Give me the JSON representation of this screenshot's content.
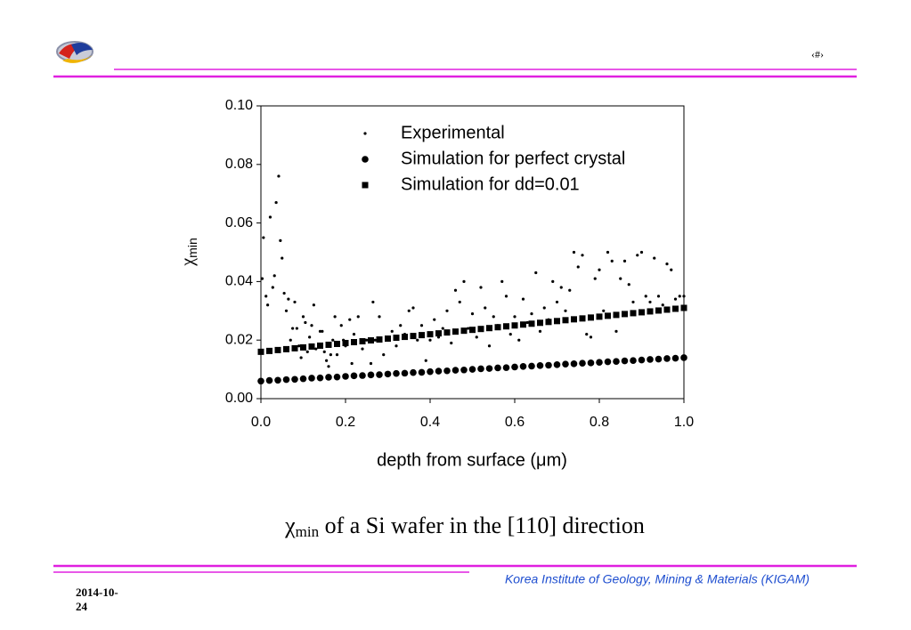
{
  "page_number": "‹#›",
  "footer": "Korea Institute of Geology, Mining & Materials (KIGAM)",
  "date": "2014-10-24",
  "caption": {
    "symbol": "χ",
    "subscript": "min",
    "text": " of a Si wafer in the [110] direction"
  },
  "chart_data": {
    "type": "scatter",
    "ylabel": "χ",
    "ylabel_subscript": "min",
    "xlabel": "depth from surface (μm)",
    "xlim": [
      0,
      1
    ],
    "ylim": [
      0,
      0.1
    ],
    "xticks": [
      {
        "value": 0,
        "label": "0.0"
      },
      {
        "value": 0.2,
        "label": "0.2"
      },
      {
        "value": 0.4,
        "label": "0.4"
      },
      {
        "value": 0.6,
        "label": "0.6"
      },
      {
        "value": 0.8,
        "label": "0.8"
      },
      {
        "value": 1,
        "label": "1.0"
      }
    ],
    "yticks": [
      {
        "value": 0,
        "label": "0.00"
      },
      {
        "value": 0.02,
        "label": "0.02"
      },
      {
        "value": 0.04,
        "label": "0.04"
      },
      {
        "value": 0.06,
        "label": "0.06"
      },
      {
        "value": 0.08,
        "label": "0.08"
      },
      {
        "value": 0.1,
        "label": "0.10"
      }
    ],
    "grid": false,
    "legend": "upper right",
    "series": [
      {
        "name": "Experimental",
        "color": "#000000",
        "marker": "small-dot",
        "x": [
          0.003,
          0.006,
          0.012,
          0.016,
          0.022,
          0.028,
          0.032,
          0.036,
          0.042,
          0.046,
          0.05,
          0.055,
          0.06,
          0.065,
          0.07,
          0.075,
          0.08,
          0.085,
          0.09,
          0.095,
          0.1,
          0.105,
          0.11,
          0.115,
          0.12,
          0.125,
          0.13,
          0.14,
          0.145,
          0.15,
          0.155,
          0.16,
          0.165,
          0.17,
          0.175,
          0.18,
          0.19,
          0.195,
          0.2,
          0.21,
          0.215,
          0.22,
          0.23,
          0.24,
          0.25,
          0.26,
          0.265,
          0.27,
          0.28,
          0.29,
          0.3,
          0.31,
          0.32,
          0.33,
          0.34,
          0.35,
          0.36,
          0.37,
          0.38,
          0.39,
          0.4,
          0.41,
          0.42,
          0.43,
          0.44,
          0.45,
          0.46,
          0.47,
          0.48,
          0.49,
          0.5,
          0.51,
          0.52,
          0.53,
          0.54,
          0.55,
          0.56,
          0.57,
          0.58,
          0.59,
          0.6,
          0.61,
          0.62,
          0.63,
          0.64,
          0.65,
          0.66,
          0.67,
          0.68,
          0.69,
          0.7,
          0.71,
          0.72,
          0.73,
          0.74,
          0.75,
          0.76,
          0.77,
          0.78,
          0.79,
          0.8,
          0.81,
          0.82,
          0.83,
          0.84,
          0.85,
          0.86,
          0.87,
          0.88,
          0.89,
          0.9,
          0.91,
          0.92,
          0.93,
          0.94,
          0.95,
          0.96,
          0.97,
          0.98,
          0.99,
          1.0
        ],
        "values": [
          0.041,
          0.055,
          0.035,
          0.032,
          0.062,
          0.038,
          0.042,
          0.067,
          0.076,
          0.054,
          0.048,
          0.036,
          0.03,
          0.034,
          0.02,
          0.024,
          0.033,
          0.024,
          0.018,
          0.014,
          0.028,
          0.026,
          0.016,
          0.021,
          0.025,
          0.032,
          0.017,
          0.023,
          0.023,
          0.016,
          0.013,
          0.011,
          0.015,
          0.02,
          0.028,
          0.015,
          0.025,
          0.02,
          0.018,
          0.027,
          0.012,
          0.022,
          0.028,
          0.017,
          0.02,
          0.012,
          0.033,
          0.02,
          0.028,
          0.015,
          0.021,
          0.023,
          0.018,
          0.025,
          0.022,
          0.03,
          0.031,
          0.02,
          0.025,
          0.013,
          0.02,
          0.027,
          0.021,
          0.024,
          0.03,
          0.019,
          0.037,
          0.033,
          0.04,
          0.024,
          0.029,
          0.021,
          0.038,
          0.031,
          0.018,
          0.028,
          0.025,
          0.04,
          0.035,
          0.022,
          0.028,
          0.02,
          0.034,
          0.026,
          0.029,
          0.043,
          0.023,
          0.031,
          0.027,
          0.04,
          0.033,
          0.038,
          0.03,
          0.037,
          0.05,
          0.045,
          0.049,
          0.022,
          0.021,
          0.041,
          0.044,
          0.03,
          0.05,
          0.047,
          0.023,
          0.041,
          0.047,
          0.039,
          0.033,
          0.049,
          0.05,
          0.035,
          0.033,
          0.048,
          0.035,
          0.032,
          0.046,
          0.044,
          0.034,
          0.035,
          0.035
        ]
      },
      {
        "name": "Simulation for perfect crystal",
        "color": "#000000",
        "marker": "circle",
        "x": [
          0,
          0.02,
          0.04,
          0.06,
          0.08,
          0.1,
          0.12,
          0.14,
          0.16,
          0.18,
          0.2,
          0.22,
          0.24,
          0.26,
          0.28,
          0.3,
          0.32,
          0.34,
          0.36,
          0.38,
          0.4,
          0.42,
          0.44,
          0.46,
          0.48,
          0.5,
          0.52,
          0.54,
          0.56,
          0.58,
          0.6,
          0.62,
          0.64,
          0.66,
          0.68,
          0.7,
          0.72,
          0.74,
          0.76,
          0.78,
          0.8,
          0.82,
          0.84,
          0.86,
          0.88,
          0.9,
          0.92,
          0.94,
          0.96,
          0.98,
          1.0
        ],
        "values": [
          0.006,
          0.0062,
          0.0063,
          0.0065,
          0.0066,
          0.0068,
          0.007,
          0.0071,
          0.0073,
          0.0074,
          0.0076,
          0.0078,
          0.0079,
          0.0081,
          0.0082,
          0.0084,
          0.0086,
          0.0087,
          0.0089,
          0.009,
          0.0092,
          0.0094,
          0.0095,
          0.0097,
          0.0098,
          0.01,
          0.0102,
          0.0103,
          0.0105,
          0.0106,
          0.0108,
          0.011,
          0.0111,
          0.0113,
          0.0114,
          0.0116,
          0.0118,
          0.0119,
          0.0121,
          0.0122,
          0.0124,
          0.0126,
          0.0127,
          0.0129,
          0.013,
          0.0132,
          0.0134,
          0.0135,
          0.0137,
          0.0138,
          0.014
        ]
      },
      {
        "name": "Simulation for dd=0.01",
        "color": "#000000",
        "marker": "square",
        "x": [
          0,
          0.02,
          0.04,
          0.06,
          0.08,
          0.1,
          0.12,
          0.14,
          0.16,
          0.18,
          0.2,
          0.22,
          0.24,
          0.26,
          0.28,
          0.3,
          0.32,
          0.34,
          0.36,
          0.38,
          0.4,
          0.42,
          0.44,
          0.46,
          0.48,
          0.5,
          0.52,
          0.54,
          0.56,
          0.58,
          0.6,
          0.62,
          0.64,
          0.66,
          0.68,
          0.7,
          0.72,
          0.74,
          0.76,
          0.78,
          0.8,
          0.82,
          0.84,
          0.86,
          0.88,
          0.9,
          0.92,
          0.94,
          0.96,
          0.98,
          1.0
        ],
        "values": [
          0.016,
          0.0163,
          0.0166,
          0.0169,
          0.0172,
          0.0175,
          0.0178,
          0.0181,
          0.0184,
          0.0187,
          0.019,
          0.0193,
          0.0196,
          0.0199,
          0.0202,
          0.0205,
          0.0208,
          0.0211,
          0.0214,
          0.0217,
          0.022,
          0.0223,
          0.0226,
          0.0229,
          0.0232,
          0.0235,
          0.0238,
          0.0241,
          0.0244,
          0.0247,
          0.025,
          0.0253,
          0.0256,
          0.0259,
          0.0262,
          0.0265,
          0.0268,
          0.0271,
          0.0274,
          0.0277,
          0.028,
          0.0283,
          0.0286,
          0.0289,
          0.0292,
          0.0295,
          0.0298,
          0.0301,
          0.0304,
          0.0307,
          0.031
        ]
      }
    ]
  }
}
